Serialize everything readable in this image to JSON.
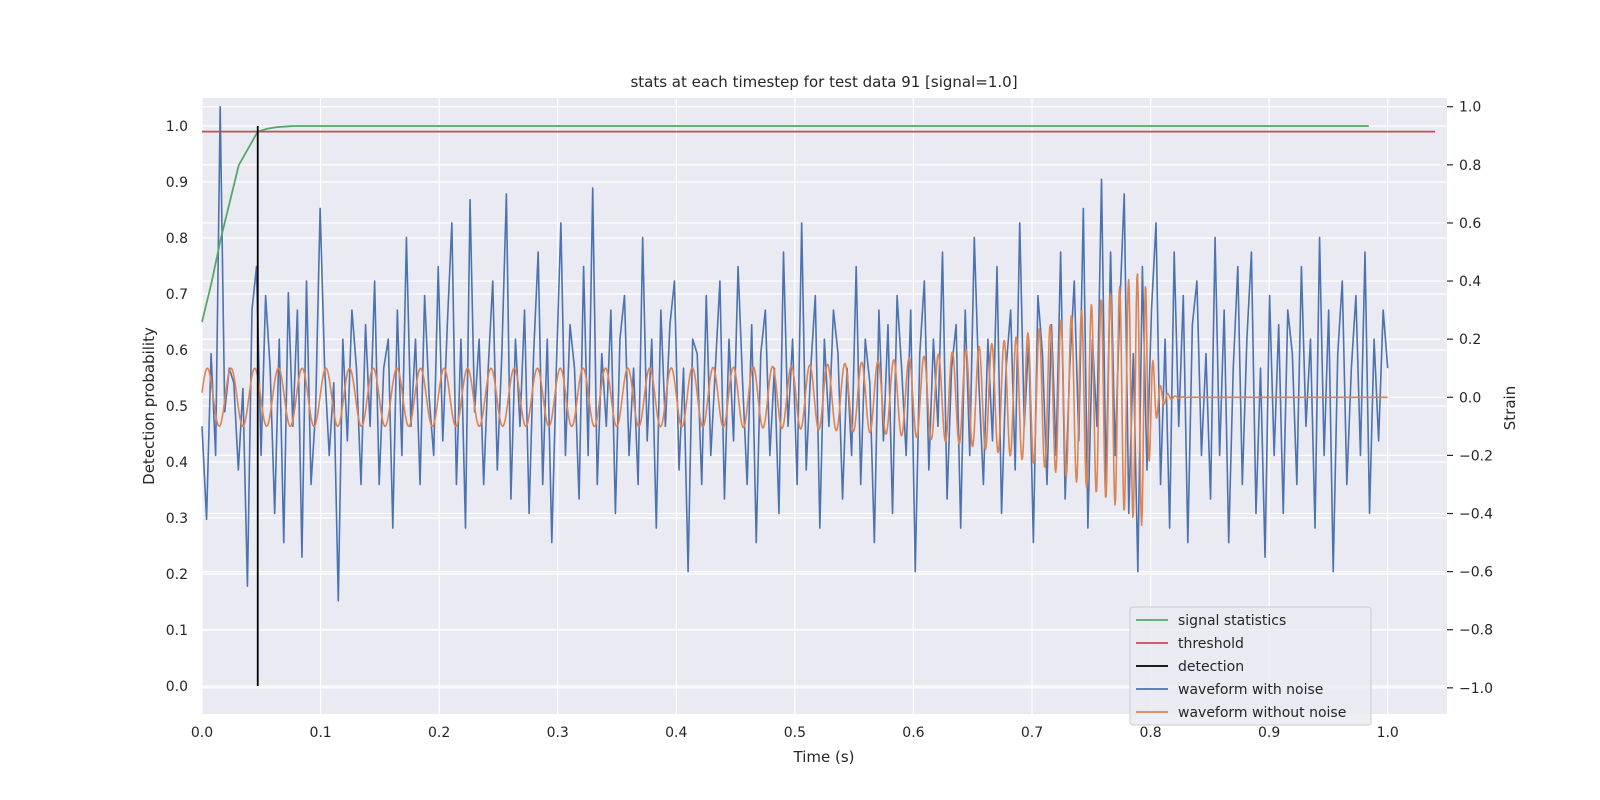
{
  "chart_data": {
    "type": "line",
    "title": "stats at each timestep for test data 91 [signal=1.0]",
    "xlabel": "Time (s)",
    "ylabel": "Detection probability",
    "y2label": "Strain",
    "xlim": [
      0.0,
      1.05
    ],
    "ylim": [
      -0.05,
      1.05
    ],
    "y2lim": [
      -1.09,
      1.03
    ],
    "xticks": [
      "0.0",
      "0.1",
      "0.2",
      "0.3",
      "0.4",
      "0.5",
      "0.6",
      "0.7",
      "0.8",
      "0.9",
      "1.0"
    ],
    "yticks": [
      "0.0",
      "0.1",
      "0.2",
      "0.3",
      "0.4",
      "0.5",
      "0.6",
      "0.7",
      "0.8",
      "0.9",
      "1.0"
    ],
    "y2ticks": [
      "−1.0",
      "−0.8",
      "−0.6",
      "−0.4",
      "−0.2",
      "0.0",
      "0.2",
      "0.4",
      "0.6",
      "0.8",
      "1.0"
    ],
    "grid": true,
    "legend_position": "lower-right",
    "colors": {
      "plot_bg": "#eaeaf2",
      "grid": "#ffffff",
      "signal_statistics": "#55a868",
      "threshold": "#c44e52",
      "detection": "#000000",
      "waveform_with_noise": "#4c72b0",
      "waveform_without_noise": "#dd8452"
    },
    "series": [
      {
        "name": "signal statistics",
        "axis": "left",
        "x": [
          0.0,
          0.008,
          0.016,
          0.031,
          0.047,
          0.055,
          0.063,
          0.07,
          0.078,
          0.1,
          0.2,
          0.4,
          0.6,
          0.8,
          0.984
        ],
        "y": [
          0.65,
          0.72,
          0.8,
          0.93,
          0.99,
          0.995,
          0.998,
          0.999,
          1.0,
          1.0,
          1.0,
          1.0,
          1.0,
          1.0,
          1.0
        ]
      },
      {
        "name": "threshold",
        "axis": "left",
        "x": [
          0.0,
          1.04
        ],
        "y": [
          0.99,
          0.99
        ]
      },
      {
        "name": "detection",
        "axis": "left",
        "x": [
          0.047,
          0.047
        ],
        "y": [
          0.0,
          1.0
        ]
      },
      {
        "name": "waveform with noise",
        "axis": "right",
        "x_start": 0.0,
        "x_end": 1.0,
        "y": [
          -0.1,
          -0.42,
          0.15,
          -0.2,
          1.0,
          -0.05,
          0.1,
          0.05,
          -0.25,
          0.03,
          -0.65,
          0.3,
          0.45,
          -0.2,
          0.35,
          0.1,
          -0.4,
          0.2,
          -0.5,
          0.36,
          -0.1,
          0.3,
          -0.55,
          0.4,
          -0.3,
          -0.05,
          0.65,
          0.1,
          -0.2,
          0.05,
          -0.7,
          0.2,
          -0.15,
          0.3,
          0.1,
          -0.3,
          0.25,
          -0.1,
          0.4,
          -0.3,
          0.1,
          0.2,
          -0.45,
          0.3,
          -0.2,
          0.55,
          -0.1,
          0.2,
          -0.3,
          0.35,
          0.0,
          -0.2,
          0.45,
          -0.15,
          0.25,
          0.6,
          -0.3,
          0.2,
          -0.45,
          0.68,
          -0.05,
          0.2,
          -0.3,
          0.1,
          0.4,
          -0.25,
          0.15,
          0.7,
          -0.35,
          0.2,
          -0.1,
          0.3,
          -0.4,
          0.15,
          0.5,
          -0.3,
          0.2,
          -0.5,
          0.1,
          0.6,
          -0.2,
          0.25,
          0.1,
          -0.35,
          0.45,
          -0.2,
          0.72,
          -0.3,
          0.15,
          -0.1,
          0.3,
          -0.4,
          0.2,
          0.35,
          -0.2,
          0.1,
          -0.3,
          0.55,
          -0.15,
          0.2,
          -0.45,
          0.3,
          -0.1,
          0.25,
          0.4,
          -0.25,
          0.1,
          -0.6,
          0.2,
          0.15,
          -0.3,
          0.35,
          -0.2,
          0.1,
          0.4,
          -0.35,
          0.2,
          -0.15,
          0.45,
          0.05,
          -0.3,
          0.25,
          -0.5,
          0.15,
          0.3,
          -0.2,
          0.1,
          -0.4,
          0.5,
          -0.1,
          0.2,
          -0.3,
          0.6,
          -0.25,
          0.1,
          0.35,
          -0.45,
          0.2,
          -0.1,
          0.3,
          0.15,
          -0.35,
          0.1,
          -0.2,
          0.45,
          -0.3,
          0.2,
          0.05,
          -0.5,
          0.3,
          -0.15,
          0.25,
          -0.4,
          0.35,
          0.1,
          -0.2,
          0.3,
          -0.6,
          0.15,
          0.4,
          -0.25,
          0.2,
          -0.1,
          0.5,
          -0.35,
          0.1,
          0.25,
          -0.45,
          0.3,
          -0.2,
          0.55,
          0.05,
          -0.3,
          0.2,
          -0.15,
          0.45,
          -0.4,
          0.1,
          0.3,
          -0.25,
          0.6,
          -0.1,
          0.2,
          -0.5,
          0.35,
          0.15,
          -0.3,
          0.25,
          -0.2,
          0.5,
          -0.35,
          0.1,
          0.4,
          -0.15,
          0.65,
          -0.45,
          0.2,
          -0.1,
          0.75,
          -0.3,
          0.5,
          -0.2,
          0.3,
          0.7,
          -0.4,
          0.15,
          -0.6,
          0.45,
          -0.25,
          0.3,
          0.6,
          -0.3,
          0.2,
          -0.45,
          0.5,
          -0.1,
          0.35,
          -0.5,
          0.25,
          0.4,
          -0.2,
          0.15,
          -0.35,
          0.55,
          -0.2,
          0.3,
          -0.5,
          0.1,
          0.45,
          -0.3,
          0.2,
          0.5,
          -0.4,
          0.1,
          -0.55,
          0.35,
          -0.2,
          0.25,
          -0.4,
          0.3,
          0.15,
          -0.3,
          0.45,
          -0.1,
          0.2,
          -0.45,
          0.55,
          -0.2,
          0.3,
          -0.6,
          0.15,
          0.4,
          -0.3,
          0.1,
          0.35,
          -0.2,
          0.5,
          -0.4,
          0.2,
          -0.15,
          0.3,
          0.1
        ],
        "y_note_x_range": [
          0.0,
          1.0
        ]
      },
      {
        "name": "waveform without noise",
        "axis": "right",
        "x_start": 0.0,
        "x_chirp_end": 0.795,
        "x_end": 1.0,
        "amplitude_start": 0.1,
        "amplitude_peak": 0.45,
        "freq_start_hz": 50,
        "freq_end_hz": 140
      }
    ]
  }
}
